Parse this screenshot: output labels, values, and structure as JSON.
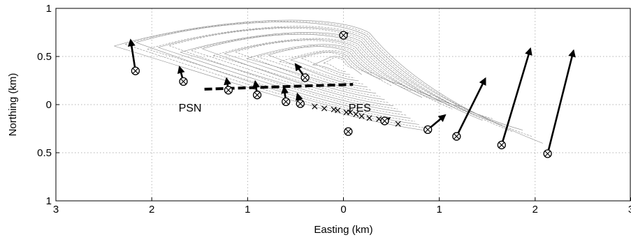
{
  "chart_data": {
    "type": "scatter",
    "xlabel": "Easting (km)",
    "ylabel": "Northing (km)",
    "xlim": [
      3,
      -3
    ],
    "ylim": [
      -1,
      1
    ],
    "grid": true,
    "x_tick_labels": [
      {
        "value": 3,
        "label": "3"
      },
      {
        "value": 2,
        "label": "2"
      },
      {
        "value": 1,
        "label": "1"
      },
      {
        "value": 0,
        "label": "0"
      },
      {
        "value": -1,
        "label": "1"
      },
      {
        "value": -2,
        "label": "2"
      },
      {
        "value": -3,
        "label": "3"
      }
    ],
    "y_tick_labels": [
      {
        "value": 1,
        "label": "1"
      },
      {
        "value": 0.5,
        "label": "0.5"
      },
      {
        "value": 0,
        "label": "0"
      },
      {
        "value": -0.5,
        "label": "0.5"
      },
      {
        "value": -1,
        "label": "1"
      }
    ],
    "stations": [
      {
        "x": 2.17,
        "y": 0.35,
        "dx": 0.05,
        "dy": 0.32
      },
      {
        "x": 1.67,
        "y": 0.24,
        "dx": 0.04,
        "dy": 0.15
      },
      {
        "x": 1.2,
        "y": 0.15,
        "dx": 0.02,
        "dy": 0.12
      },
      {
        "x": 0.9,
        "y": 0.1,
        "dx": 0.02,
        "dy": 0.14
      },
      {
        "x": 0.4,
        "y": 0.28,
        "dx": 0.1,
        "dy": 0.14
      },
      {
        "x": 0.6,
        "y": 0.03,
        "dx": 0.02,
        "dy": 0.15
      },
      {
        "x": 0.45,
        "y": 0.01,
        "dx": 0.03,
        "dy": 0.1
      },
      {
        "x": 0.0,
        "y": 0.72,
        "dx": -0.04,
        "dy": 0.02
      },
      {
        "x": -0.05,
        "y": -0.28,
        "dx": 0.0,
        "dy": 0.0
      },
      {
        "x": -0.43,
        "y": -0.17,
        "dx": -0.05,
        "dy": 0.03
      },
      {
        "x": -0.88,
        "y": -0.26,
        "dx": -0.18,
        "dy": 0.15
      },
      {
        "x": -1.18,
        "y": -0.33,
        "dx": -0.3,
        "dy": 0.6
      },
      {
        "x": -1.65,
        "y": -0.42,
        "dx": -0.3,
        "dy": 1.0
      },
      {
        "x": -2.13,
        "y": -0.51,
        "dx": -0.27,
        "dy": 1.07
      }
    ],
    "crosses": [
      {
        "x": 0.3,
        "y": -0.02
      },
      {
        "x": 0.2,
        "y": -0.04
      },
      {
        "x": 0.1,
        "y": -0.05
      },
      {
        "x": 0.06,
        "y": -0.06
      },
      {
        "x": -0.03,
        "y": -0.08
      },
      {
        "x": -0.07,
        "y": -0.08
      },
      {
        "x": -0.13,
        "y": -0.1
      },
      {
        "x": -0.19,
        "y": -0.12
      },
      {
        "x": -0.27,
        "y": -0.14
      },
      {
        "x": -0.37,
        "y": -0.15
      },
      {
        "x": -0.57,
        "y": -0.2
      }
    ],
    "dashed_line": {
      "points": [
        {
          "x": 1.45,
          "y": 0.16
        },
        {
          "x": -0.1,
          "y": 0.21
        }
      ]
    },
    "labels": [
      {
        "text": "PSN",
        "x": 1.6,
        "y": -0.03
      },
      {
        "text": "PES",
        "x": -0.17,
        "y": -0.03
      }
    ],
    "contours": {
      "levels": 20,
      "source_x": 0.02,
      "source_y": 0.42,
      "arms": [
        2.3,
        2.0,
        2.1,
        1.6
      ],
      "y_extent": [
        0.95,
        0.27,
        0.42,
        0.68
      ]
    }
  }
}
